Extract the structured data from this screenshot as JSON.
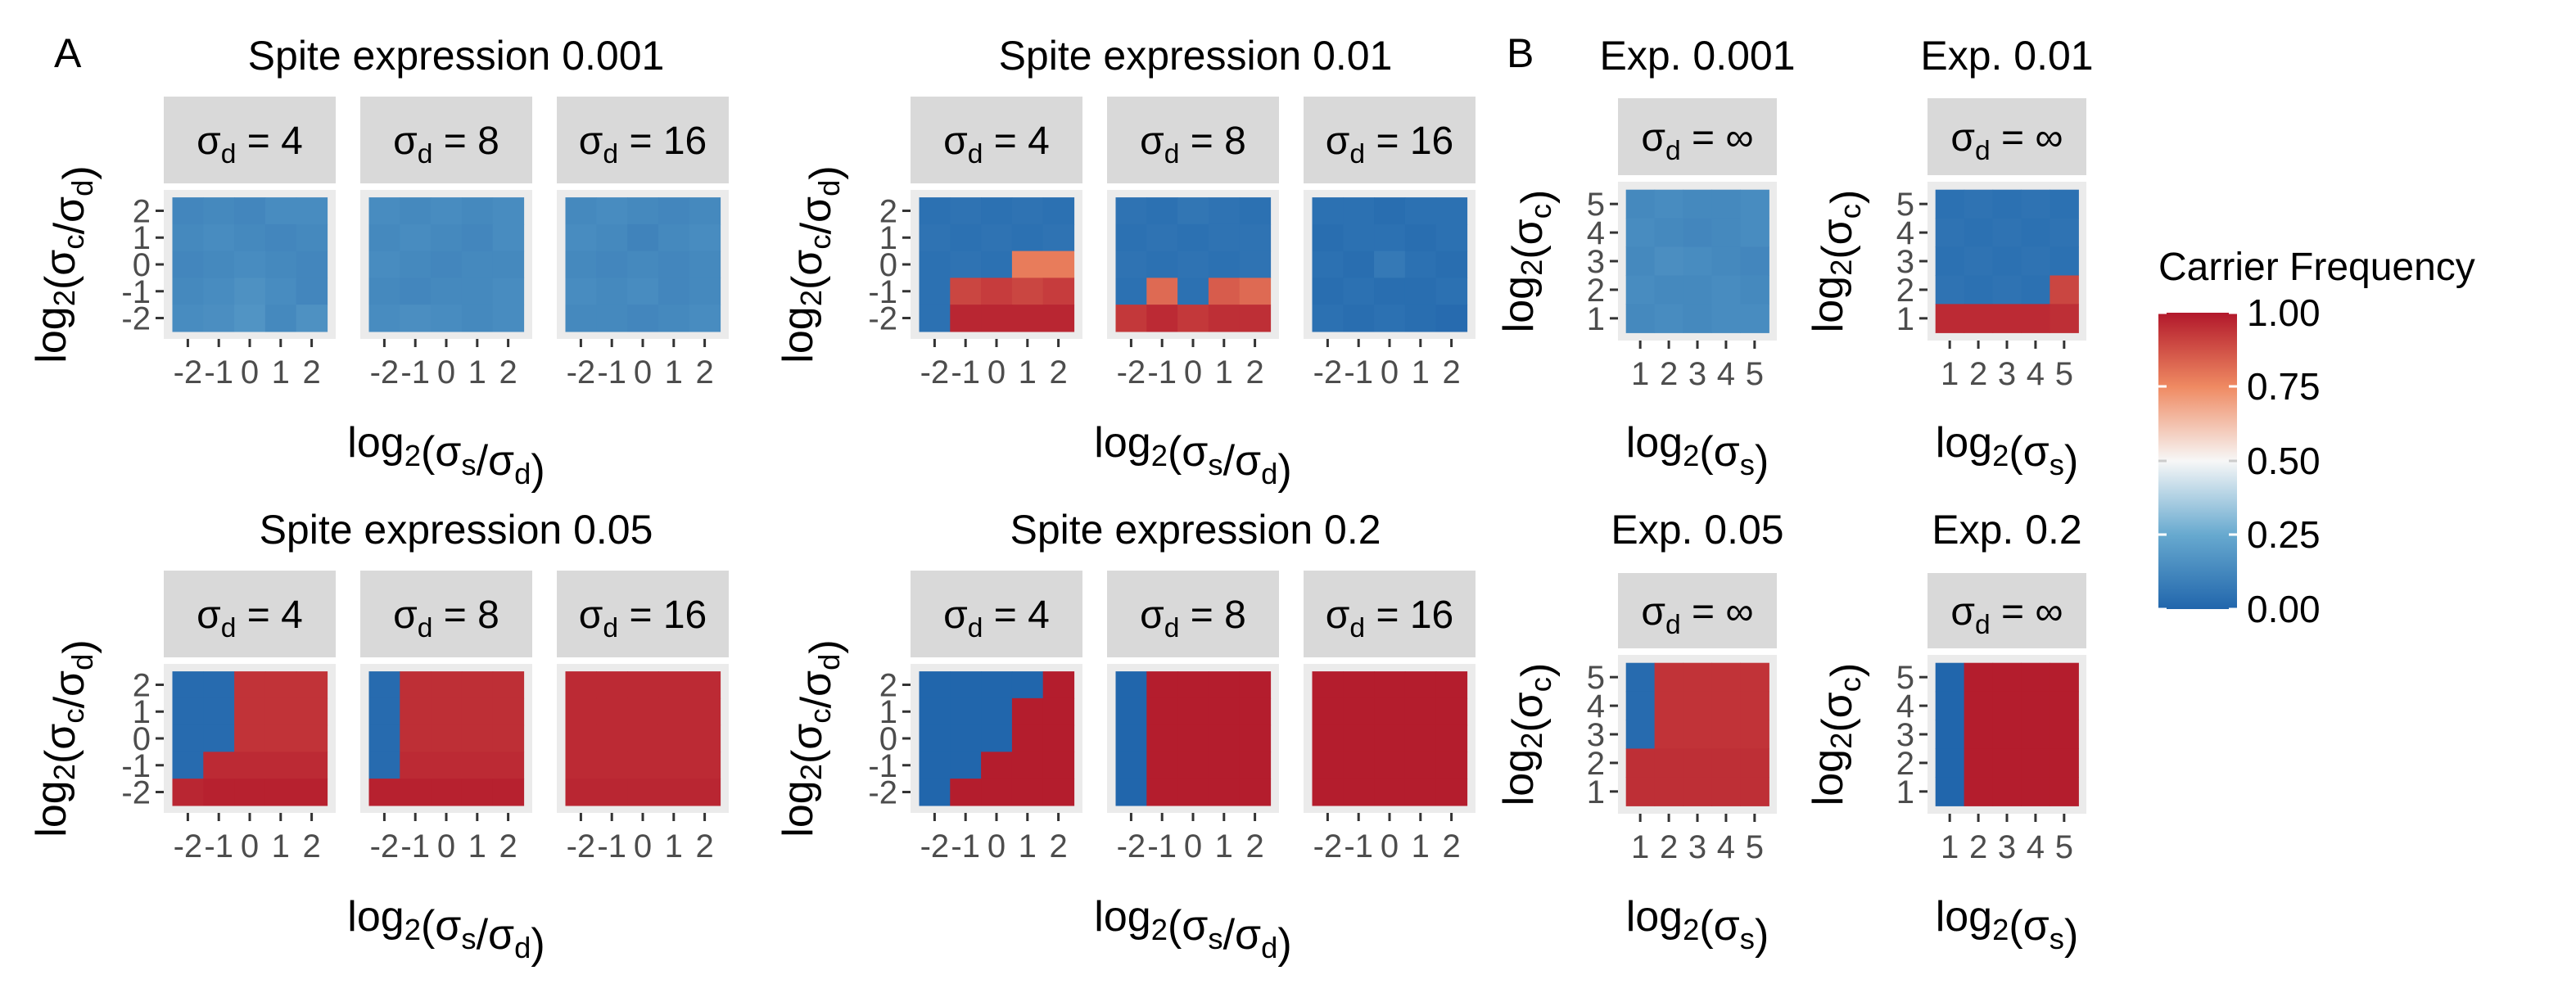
{
  "panel_labels": [
    "A",
    "B"
  ],
  "legend": {
    "title": "Carrier Frequency",
    "ticks": [
      "1.00",
      "0.75",
      "0.50",
      "0.25",
      "0.00"
    ],
    "colors": [
      "#2166AC",
      "#67A9CF",
      "#F7F7F7",
      "#EF8A62",
      "#B2182B"
    ]
  },
  "tile_grey": "#D9D9D9",
  "chart_data": [
    {
      "type": "heatmap",
      "panel": "A",
      "title": "Spite expression 0.001",
      "xlabel": "log2(σs/σd)",
      "ylabel": "log2(σc/σd)",
      "x_ticks": [
        "-2",
        "-1",
        "0",
        "1",
        "2"
      ],
      "y_ticks": [
        "-2",
        "-1",
        "0",
        "1",
        "2"
      ],
      "facets": [
        {
          "label": "σd = 4",
          "values": [
            [
              0.12,
              0.13,
              0.12,
              0.14,
              0.14
            ],
            [
              0.13,
              0.14,
              0.13,
              0.12,
              0.13
            ],
            [
              0.12,
              0.13,
              0.14,
              0.13,
              0.12
            ],
            [
              0.13,
              0.14,
              0.16,
              0.14,
              0.12
            ],
            [
              0.14,
              0.15,
              0.17,
              0.13,
              0.16
            ]
          ]
        },
        {
          "label": "σd = 8",
          "values": [
            [
              0.14,
              0.13,
              0.14,
              0.13,
              0.14
            ],
            [
              0.13,
              0.14,
              0.13,
              0.12,
              0.14
            ],
            [
              0.14,
              0.13,
              0.12,
              0.13,
              0.13
            ],
            [
              0.13,
              0.12,
              0.13,
              0.13,
              0.14
            ],
            [
              0.14,
              0.15,
              0.14,
              0.13,
              0.14
            ]
          ]
        },
        {
          "label": "σd = 16",
          "values": [
            [
              0.13,
              0.14,
              0.13,
              0.12,
              0.13
            ],
            [
              0.14,
              0.13,
              0.11,
              0.13,
              0.14
            ],
            [
              0.13,
              0.12,
              0.13,
              0.12,
              0.13
            ],
            [
              0.14,
              0.13,
              0.14,
              0.12,
              0.13
            ],
            [
              0.13,
              0.13,
              0.12,
              0.13,
              0.14
            ]
          ]
        }
      ]
    },
    {
      "type": "heatmap",
      "panel": "A",
      "title": "Spite expression 0.01",
      "xlabel": "log2(σs/σd)",
      "ylabel": "log2(σc/σd)",
      "x_ticks": [
        "-2",
        "-1",
        "0",
        "1",
        "2"
      ],
      "y_ticks": [
        "-2",
        "-1",
        "0",
        "1",
        "2"
      ],
      "facets": [
        {
          "label": "σd = 4",
          "values": [
            [
              0.04,
              0.05,
              0.04,
              0.05,
              0.04
            ],
            [
              0.05,
              0.04,
              0.05,
              0.04,
              0.05
            ],
            [
              0.04,
              0.05,
              0.04,
              0.78,
              0.78
            ],
            [
              0.04,
              0.9,
              0.92,
              0.9,
              0.92
            ],
            [
              0.04,
              0.97,
              0.97,
              0.97,
              0.97
            ]
          ]
        },
        {
          "label": "σd = 8",
          "values": [
            [
              0.05,
              0.04,
              0.06,
              0.05,
              0.04
            ],
            [
              0.04,
              0.05,
              0.04,
              0.05,
              0.05
            ],
            [
              0.05,
              0.04,
              0.05,
              0.04,
              0.05
            ],
            [
              0.04,
              0.82,
              0.04,
              0.85,
              0.82
            ],
            [
              0.93,
              0.96,
              0.93,
              0.95,
              0.95
            ]
          ]
        },
        {
          "label": "σd = 16",
          "values": [
            [
              0.04,
              0.04,
              0.03,
              0.04,
              0.04
            ],
            [
              0.03,
              0.04,
              0.04,
              0.03,
              0.04
            ],
            [
              0.04,
              0.03,
              0.07,
              0.04,
              0.03
            ],
            [
              0.03,
              0.04,
              0.03,
              0.03,
              0.04
            ],
            [
              0.04,
              0.03,
              0.04,
              0.03,
              0.02
            ]
          ]
        }
      ]
    },
    {
      "type": "heatmap",
      "panel": "A",
      "title": "Spite expression 0.05",
      "xlabel": "log2(σs/σd)",
      "ylabel": "log2(σc/σd)",
      "x_ticks": [
        "-2",
        "-1",
        "0",
        "1",
        "2"
      ],
      "y_ticks": [
        "-2",
        "-1",
        "0",
        "1",
        "2"
      ],
      "facets": [
        {
          "label": "σd = 4",
          "values": [
            [
              0.02,
              0.02,
              0.94,
              0.94,
              0.94
            ],
            [
              0.02,
              0.02,
              0.94,
              0.94,
              0.94
            ],
            [
              0.02,
              0.02,
              0.94,
              0.94,
              0.94
            ],
            [
              0.02,
              0.96,
              0.96,
              0.96,
              0.96
            ],
            [
              0.97,
              0.98,
              0.98,
              0.98,
              0.98
            ]
          ]
        },
        {
          "label": "σd = 8",
          "values": [
            [
              0.02,
              0.95,
              0.95,
              0.95,
              0.95
            ],
            [
              0.02,
              0.95,
              0.95,
              0.95,
              0.95
            ],
            [
              0.02,
              0.95,
              0.95,
              0.95,
              0.95
            ],
            [
              0.02,
              0.96,
              0.96,
              0.96,
              0.96
            ],
            [
              0.98,
              0.98,
              0.98,
              0.98,
              0.98
            ]
          ]
        },
        {
          "label": "σd = 16",
          "values": [
            [
              0.96,
              0.96,
              0.96,
              0.96,
              0.96
            ],
            [
              0.96,
              0.96,
              0.96,
              0.96,
              0.96
            ],
            [
              0.96,
              0.96,
              0.96,
              0.96,
              0.96
            ],
            [
              0.96,
              0.96,
              0.96,
              0.96,
              0.96
            ],
            [
              0.97,
              0.97,
              0.97,
              0.97,
              0.97
            ]
          ]
        }
      ]
    },
    {
      "type": "heatmap",
      "panel": "A",
      "title": "Spite expression 0.2",
      "xlabel": "log2(σs/σd)",
      "ylabel": "log2(σc/σd)",
      "x_ticks": [
        "-2",
        "-1",
        "0",
        "1",
        "2"
      ],
      "y_ticks": [
        "-2",
        "-1",
        "0",
        "1",
        "2"
      ],
      "facets": [
        {
          "label": "σd = 4",
          "values": [
            [
              0.0,
              0.0,
              0.0,
              0.0,
              0.99
            ],
            [
              0.0,
              0.0,
              0.0,
              0.99,
              0.99
            ],
            [
              0.0,
              0.0,
              0.0,
              0.99,
              0.99
            ],
            [
              0.0,
              0.0,
              0.99,
              0.99,
              0.99
            ],
            [
              0.0,
              0.99,
              0.99,
              0.99,
              0.99
            ]
          ]
        },
        {
          "label": "σd = 8",
          "values": [
            [
              0.0,
              0.99,
              0.99,
              0.99,
              0.99
            ],
            [
              0.0,
              0.99,
              0.99,
              0.99,
              0.99
            ],
            [
              0.0,
              0.99,
              0.99,
              0.99,
              0.99
            ],
            [
              0.0,
              0.99,
              0.99,
              0.99,
              0.99
            ],
            [
              0.0,
              0.99,
              0.99,
              0.99,
              0.99
            ]
          ]
        },
        {
          "label": "σd = 16",
          "values": [
            [
              0.99,
              0.99,
              0.99,
              0.99,
              0.99
            ],
            [
              0.99,
              0.99,
              0.99,
              0.99,
              0.99
            ],
            [
              0.99,
              0.99,
              0.99,
              0.99,
              0.99
            ],
            [
              0.99,
              0.99,
              0.99,
              0.99,
              0.99
            ],
            [
              0.99,
              0.99,
              0.99,
              0.99,
              0.99
            ]
          ]
        }
      ]
    },
    {
      "type": "heatmap",
      "panel": "B",
      "title": "Exp. 0.001",
      "xlabel": "log2(σs)",
      "ylabel": "log2(σc)",
      "x_ticks": [
        "1",
        "2",
        "3",
        "4",
        "5"
      ],
      "y_ticks": [
        "1",
        "2",
        "3",
        "4",
        "5"
      ],
      "facets": [
        {
          "label": "σd = ∞",
          "values": [
            [
              0.13,
              0.14,
              0.13,
              0.13,
              0.14
            ],
            [
              0.14,
              0.13,
              0.12,
              0.13,
              0.14
            ],
            [
              0.13,
              0.15,
              0.14,
              0.13,
              0.12
            ],
            [
              0.14,
              0.13,
              0.13,
              0.14,
              0.13
            ],
            [
              0.13,
              0.14,
              0.13,
              0.14,
              0.14
            ]
          ]
        }
      ]
    },
    {
      "type": "heatmap",
      "panel": "B",
      "title": "Exp. 0.01",
      "xlabel": "log2(σs)",
      "ylabel": "log2(σc)",
      "x_ticks": [
        "1",
        "2",
        "3",
        "4",
        "5"
      ],
      "y_ticks": [
        "1",
        "2",
        "3",
        "4",
        "5"
      ],
      "facets": [
        {
          "label": "σd = ∞",
          "values": [
            [
              0.04,
              0.05,
              0.04,
              0.05,
              0.04
            ],
            [
              0.05,
              0.04,
              0.05,
              0.04,
              0.05
            ],
            [
              0.04,
              0.05,
              0.04,
              0.05,
              0.04
            ],
            [
              0.05,
              0.04,
              0.05,
              0.04,
              0.9
            ],
            [
              0.96,
              0.96,
              0.96,
              0.96,
              0.95
            ]
          ]
        }
      ]
    },
    {
      "type": "heatmap",
      "panel": "B",
      "title": "Exp. 0.05",
      "xlabel": "log2(σs)",
      "ylabel": "log2(σc)",
      "x_ticks": [
        "1",
        "2",
        "3",
        "4",
        "5"
      ],
      "y_ticks": [
        "1",
        "2",
        "3",
        "4",
        "5"
      ],
      "facets": [
        {
          "label": "σd = ∞",
          "values": [
            [
              0.02,
              0.94,
              0.94,
              0.94,
              0.94
            ],
            [
              0.02,
              0.94,
              0.94,
              0.94,
              0.94
            ],
            [
              0.02,
              0.94,
              0.94,
              0.94,
              0.94
            ],
            [
              0.95,
              0.95,
              0.95,
              0.95,
              0.95
            ],
            [
              0.95,
              0.95,
              0.95,
              0.95,
              0.95
            ]
          ]
        }
      ]
    },
    {
      "type": "heatmap",
      "panel": "B",
      "title": "Exp. 0.2",
      "xlabel": "log2(σs)",
      "ylabel": "log2(σc)",
      "x_ticks": [
        "1",
        "2",
        "3",
        "4",
        "5"
      ],
      "y_ticks": [
        "1",
        "2",
        "3",
        "4",
        "5"
      ],
      "facets": [
        {
          "label": "σd = ∞",
          "values": [
            [
              0.0,
              0.99,
              0.99,
              0.99,
              0.99
            ],
            [
              0.0,
              0.99,
              0.99,
              0.99,
              0.99
            ],
            [
              0.0,
              0.99,
              0.99,
              0.99,
              0.99
            ],
            [
              0.0,
              0.99,
              0.99,
              0.99,
              0.99
            ],
            [
              0.0,
              0.99,
              0.99,
              0.99,
              0.99
            ]
          ]
        }
      ]
    }
  ]
}
